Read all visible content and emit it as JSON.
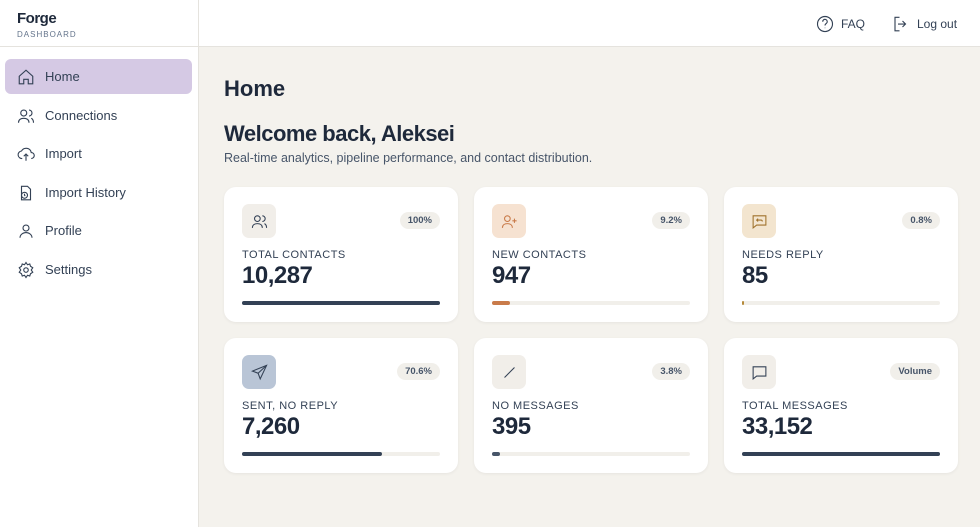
{
  "brand": {
    "name": "Forge",
    "subtitle": "DASHBOARD"
  },
  "nav": [
    "Home",
    "Connections",
    "Import",
    "Import History",
    "Profile",
    "Settings"
  ],
  "header": {
    "faq": "FAQ",
    "logout": "Log out"
  },
  "page": {
    "title": "Home",
    "heading": "Welcome back, Aleksei",
    "subheading": "Real-time analytics, pipeline performance, and contact distribution."
  },
  "cards": [
    {
      "label": "TOTAL CONTACTS",
      "value": "10,287",
      "badge": "100%",
      "progress": 100,
      "color": "#334155"
    },
    {
      "label": "NEW CONTACTS",
      "value": "947",
      "badge": "9.2%",
      "progress": 9.2,
      "color": "#c97b4a"
    },
    {
      "label": "NEEDS REPLY",
      "value": "85",
      "badge": "0.8%",
      "progress": 0.8,
      "color": "#b58a3a"
    },
    {
      "label": "SENT, NO REPLY",
      "value": "7,260",
      "badge": "70.6%",
      "progress": 70.6,
      "color": "#334155"
    },
    {
      "label": "NO MESSAGES",
      "value": "395",
      "badge": "3.8%",
      "progress": 3.8,
      "color": "#475569"
    },
    {
      "label": "TOTAL MESSAGES",
      "value": "33,152",
      "badge": "Volume",
      "progress": 100,
      "color": "#334155"
    }
  ]
}
